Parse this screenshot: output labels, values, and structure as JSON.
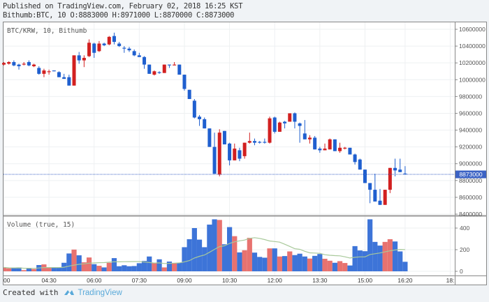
{
  "header": {
    "published": "Published on TradingView.com, February 02, 2018 16:25 KST",
    "ohlc_line": "Bithumb:BTC, 10 O:8883000 H:8971000 L:8870000 C:8873000"
  },
  "footer": {
    "created_with": "Created with",
    "brand": "TradingView"
  },
  "colors": {
    "up": "#d22020",
    "down": "#1f5fcf",
    "vol_up": "#e8726f",
    "vol_down": "#3d74d8",
    "ma": "#a8c99a",
    "price_line": "#3b62c4"
  },
  "chart_data": {
    "type": "candlestick",
    "title": "BTC/KRW, 10, Bithumb",
    "volume_title": "Volume (true, 15)",
    "current_price_label": "8873000",
    "current_price": 8873000,
    "ylim": [
      8400000,
      10600000
    ],
    "y_ticks": [
      "10600000",
      "10400000",
      "10200000",
      "10000000",
      "9800000",
      "9600000",
      "9400000",
      "9200000",
      "9000000",
      "8800000",
      "8600000",
      "8400000"
    ],
    "volume_ylim": [
      0,
      400
    ],
    "volume_ticks": [
      "400",
      "200",
      "0"
    ],
    "x_tick_labels": [
      {
        "i": 0,
        "label": "00"
      },
      {
        "i": 9,
        "label": "04:30"
      },
      {
        "i": 18,
        "label": "06:00"
      },
      {
        "i": 27,
        "label": "07:30"
      },
      {
        "i": 36,
        "label": "09:00"
      },
      {
        "i": 45,
        "label": "10:30"
      },
      {
        "i": 54,
        "label": "12:00"
      },
      {
        "i": 63,
        "label": "13:30"
      },
      {
        "i": 72,
        "label": "15:00"
      },
      {
        "i": 80,
        "label": "16:20"
      },
      {
        "i": 89,
        "label": "18:"
      }
    ],
    "ma_period": 15,
    "candles": [
      [
        10180000,
        10210000,
        10170000,
        10200000
      ],
      [
        10190000,
        10220000,
        10180000,
        10210000
      ],
      [
        10210000,
        10230000,
        10160000,
        10170000
      ],
      [
        10180000,
        10190000,
        10120000,
        10160000
      ],
      [
        10180000,
        10210000,
        10170000,
        10190000
      ],
      [
        10210000,
        10230000,
        10160000,
        10170000
      ],
      [
        10160000,
        10190000,
        10150000,
        10180000
      ],
      [
        10140000,
        10160000,
        10060000,
        10070000
      ],
      [
        10070000,
        10130000,
        10030000,
        10110000
      ],
      [
        10090000,
        10120000,
        10060000,
        10100000
      ],
      [
        10110000,
        10110000,
        10100000,
        10100000
      ],
      [
        10090000,
        10100000,
        10030000,
        10030000
      ],
      [
        10030000,
        10070000,
        10010000,
        10010000
      ],
      [
        10030000,
        10060000,
        9930000,
        9930000
      ],
      [
        9930000,
        10290000,
        9930000,
        10290000
      ],
      [
        10290000,
        10330000,
        10190000,
        10230000
      ],
      [
        10230000,
        10290000,
        10150000,
        10260000
      ],
      [
        10280000,
        10480000,
        10270000,
        10440000
      ],
      [
        10430000,
        10440000,
        10260000,
        10320000
      ],
      [
        10340000,
        10460000,
        10330000,
        10430000
      ],
      [
        10430000,
        10440000,
        10400000,
        10410000
      ],
      [
        10420000,
        10520000,
        10410000,
        10510000
      ],
      [
        10520000,
        10560000,
        10420000,
        10450000
      ],
      [
        10430000,
        10450000,
        10390000,
        10400000
      ],
      [
        10380000,
        10400000,
        10320000,
        10370000
      ],
      [
        10370000,
        10390000,
        10330000,
        10350000
      ],
      [
        10340000,
        10360000,
        10280000,
        10290000
      ],
      [
        10290000,
        10320000,
        10270000,
        10270000
      ],
      [
        10270000,
        10280000,
        10130000,
        10180000
      ],
      [
        10180000,
        10180000,
        10070000,
        10070000
      ],
      [
        10060000,
        10110000,
        10050000,
        10100000
      ],
      [
        10090000,
        10100000,
        10070000,
        10080000
      ],
      [
        10080000,
        10180000,
        10080000,
        10180000
      ],
      [
        10180000,
        10180000,
        10140000,
        10170000
      ],
      [
        10170000,
        10210000,
        10170000,
        10180000
      ],
      [
        10180000,
        10180000,
        10060000,
        10060000
      ],
      [
        10060000,
        10060000,
        9870000,
        9890000
      ],
      [
        9880000,
        9880000,
        9770000,
        9770000
      ],
      [
        9750000,
        9770000,
        9540000,
        9550000
      ],
      [
        9560000,
        9580000,
        9450000,
        9530000
      ],
      [
        9530000,
        9550000,
        9420000,
        9420000
      ],
      [
        9420000,
        9420000,
        9200000,
        9200000
      ],
      [
        9200000,
        9370000,
        8880000,
        8880000
      ],
      [
        8870000,
        9410000,
        8850000,
        9370000
      ],
      [
        9390000,
        9390000,
        9230000,
        9230000
      ],
      [
        9240000,
        9250000,
        8980000,
        9040000
      ],
      [
        9040000,
        9240000,
        9040000,
        9180000
      ],
      [
        9160000,
        9190000,
        9030000,
        9060000
      ],
      [
        9090000,
        9250000,
        9060000,
        9250000
      ],
      [
        9250000,
        9370000,
        9240000,
        9270000
      ],
      [
        9270000,
        9300000,
        9220000,
        9250000
      ],
      [
        9260000,
        9270000,
        9240000,
        9250000
      ],
      [
        9260000,
        9300000,
        9240000,
        9250000
      ],
      [
        9250000,
        9560000,
        9240000,
        9540000
      ],
      [
        9550000,
        9560000,
        9360000,
        9380000
      ],
      [
        9380000,
        9500000,
        9380000,
        9490000
      ],
      [
        9500000,
        9510000,
        9420000,
        9480000
      ],
      [
        9500000,
        9600000,
        9500000,
        9600000
      ],
      [
        9600000,
        9610000,
        9420000,
        9500000
      ],
      [
        9480000,
        9490000,
        9250000,
        9450000
      ],
      [
        9360000,
        9520000,
        9290000,
        9290000
      ],
      [
        9290000,
        9340000,
        9240000,
        9310000
      ],
      [
        9310000,
        9330000,
        9170000,
        9170000
      ],
      [
        9180000,
        9200000,
        9130000,
        9160000
      ],
      [
        9160000,
        9240000,
        9160000,
        9180000
      ],
      [
        9170000,
        9300000,
        9170000,
        9290000
      ],
      [
        9290000,
        9290000,
        9150000,
        9150000
      ],
      [
        9150000,
        9250000,
        9130000,
        9190000
      ],
      [
        9180000,
        9200000,
        9170000,
        9190000
      ],
      [
        9190000,
        9190000,
        9110000,
        9110000
      ],
      [
        9110000,
        9120000,
        8990000,
        9020000
      ],
      [
        9050000,
        9060000,
        8930000,
        8930000
      ],
      [
        8930000,
        8930000,
        8770000,
        8770000
      ],
      [
        8770000,
        8770000,
        8530000,
        8690000
      ],
      [
        8690000,
        8880000,
        8550000,
        8550000
      ],
      [
        8560000,
        8700000,
        8510000,
        8510000
      ],
      [
        8510000,
        8690000,
        8510000,
        8690000
      ],
      [
        8690000,
        8950000,
        8650000,
        8950000
      ],
      [
        8950000,
        9060000,
        8850000,
        8920000
      ],
      [
        8930000,
        9060000,
        8900000,
        8900000
      ],
      [
        8883000,
        8971000,
        8870000,
        8873000
      ]
    ],
    "volume": [
      36,
      28,
      30,
      36,
      11,
      28,
      21,
      58,
      64,
      36,
      36,
      36,
      79,
      165,
      201,
      148,
      83,
      128,
      66,
      51,
      36,
      79,
      122,
      47,
      56,
      47,
      49,
      75,
      96,
      137,
      75,
      111,
      36,
      90,
      75,
      80,
      223,
      297,
      400,
      293,
      223,
      432,
      481,
      475,
      250,
      409,
      325,
      175,
      195,
      310,
      173,
      133,
      126,
      212,
      212,
      137,
      141,
      184,
      150,
      163,
      137,
      118,
      143,
      160,
      116,
      98,
      79,
      94,
      77,
      54,
      233,
      193,
      186,
      481,
      272,
      238,
      272,
      297,
      276,
      184,
      88
    ]
  }
}
